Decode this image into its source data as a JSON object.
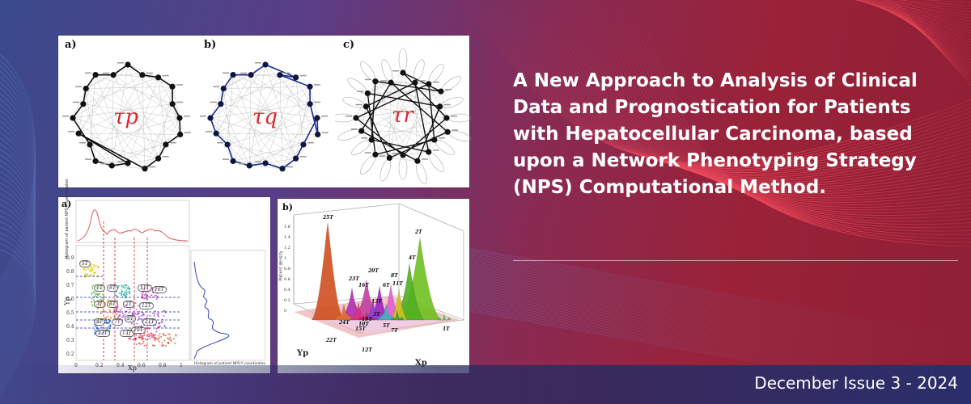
{
  "banner": {
    "title": "A New Approach to Analysis of Clinical Data and Prognostication for Patients with Hepatocellular Carcinoma, based upon a Network Phenotyping Strategy (NPS) Computational Method.",
    "issue": "December Issue 3 - 2024"
  },
  "figure_top": {
    "panels": [
      {
        "label": "a)",
        "symbol": "τp"
      },
      {
        "label": "b)",
        "symbol": "τq"
      },
      {
        "label": "c)",
        "symbol": "τr"
      }
    ]
  },
  "figure_bottom_left": {
    "label": "a)",
    "x_axis": "Xp",
    "y_axis": "Yp",
    "top_hist_label": "Histogram of patient NPS-X coordinates",
    "side_hist_label": "Histogram of patient NPS-Y coordinates",
    "x_ticks": [
      "0",
      "0.2",
      "0.4",
      "0.6",
      "0.8",
      "1"
    ],
    "y_ticks": [
      "0.2",
      "0.3",
      "0.4",
      "0.5",
      "0.6",
      "0.7",
      "0.8",
      "0.9"
    ],
    "cluster_labels": [
      "5T",
      "1T",
      "3T",
      "4T",
      "8T",
      "6T",
      "7T",
      "2T",
      "11T",
      "9T",
      "12T",
      "13T",
      "16T",
      "20T",
      "21T",
      "23T"
    ]
  },
  "figure_bottom_right": {
    "label": "b)",
    "z_axis": "Patient density",
    "x_axis": "Xp",
    "y_axis": "Yp",
    "z_ticks": [
      "1.6",
      "1.4",
      "1.2",
      "1",
      "0.8",
      "0.6",
      "0.4",
      "0.2",
      "0"
    ],
    "peak_labels": [
      "25T",
      "2T",
      "4T",
      "20T",
      "23T",
      "16T",
      "8T",
      "11T",
      "6T",
      "13T",
      "24T",
      "3T",
      "19T",
      "10T",
      "15T",
      "5T",
      "12T",
      "7T",
      "1T",
      "22T"
    ]
  },
  "colors": {
    "accent_red": "#d8282e",
    "background_blue": "#3a4a8c",
    "background_crimson": "#9a2238"
  }
}
